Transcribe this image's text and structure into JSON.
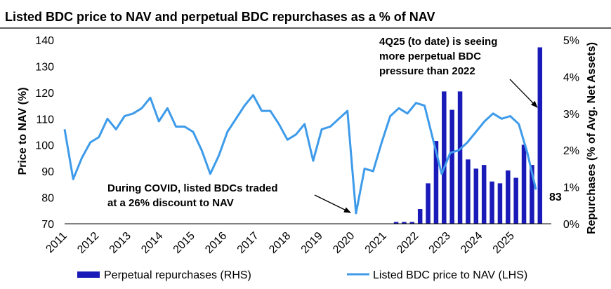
{
  "chart_data": {
    "type": "bar+line",
    "title": "Listed BDC price to NAV and perpetual BDC repurchases as a % of NAV",
    "x_tick_labels": [
      "2011",
      "2012",
      "2013",
      "2014",
      "2015",
      "2016",
      "2017",
      "2018",
      "2019",
      "2020",
      "2021",
      "2022",
      "2023",
      "2024",
      "2025"
    ],
    "y_left": {
      "label": "Price to NAV (%)",
      "lim": [
        70,
        140
      ],
      "ticks": [
        "70",
        "80",
        "90",
        "100",
        "110",
        "120",
        "130",
        "140"
      ]
    },
    "y_right": {
      "label": "Repurchases (% of Avg. Net Assets)",
      "lim": [
        0,
        5
      ],
      "ticks": [
        "0%",
        "1%",
        "2%",
        "3%",
        "4%",
        "5%"
      ]
    },
    "series": [
      {
        "name": "Perpetual repurchases (RHS)",
        "type": "bar",
        "color": "#1a1ab8",
        "start_year": 2021,
        "values_pct": [
          0.05,
          0.05,
          0.05,
          0.4,
          1.1,
          2.25,
          3.6,
          3.1,
          3.6,
          1.75,
          1.5,
          1.6,
          1.15,
          1.1,
          1.45,
          1.25,
          2.15,
          1.6,
          4.8
        ]
      },
      {
        "name": "Listed BDC price to NAV (LHS)",
        "type": "line",
        "color": "#3e9bea",
        "start_year": 2011,
        "values": [
          106,
          87,
          95,
          101,
          103,
          110,
          106,
          111,
          112,
          114,
          118,
          109,
          114,
          107,
          107,
          105,
          98,
          89,
          96,
          105,
          110,
          115,
          119,
          113,
          113,
          108,
          102,
          104,
          108,
          94,
          106,
          107,
          110,
          113,
          74,
          91,
          90,
          101,
          111,
          114,
          112,
          116,
          115,
          102,
          89,
          97,
          98,
          101,
          105,
          109,
          112,
          110,
          111,
          108,
          97,
          83
        ]
      }
    ],
    "annotations": [
      {
        "lines": [
          "4Q25 (to date) is seeing",
          "more perpetual BDC",
          "pressure than 2022"
        ]
      },
      {
        "lines": [
          "During COVID, listed BDCs traded",
          "at a 26% discount to NAV"
        ]
      }
    ],
    "data_label": "83"
  }
}
